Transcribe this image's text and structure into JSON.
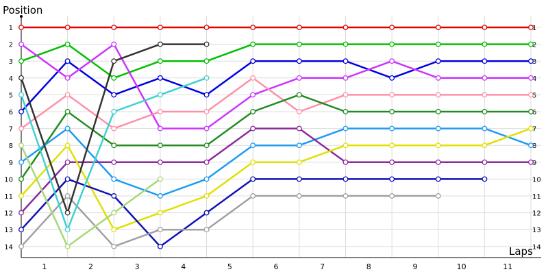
{
  "chart_data": {
    "type": "line",
    "title": "",
    "xlabel": "Laps",
    "ylabel": "Position",
    "x_tick_labels": [
      "1",
      "2",
      "3",
      "4",
      "5",
      "6",
      "7",
      "8",
      "9",
      "10",
      "11"
    ],
    "laps": [
      0,
      1,
      2,
      3,
      4,
      5,
      6,
      7,
      8,
      9,
      10,
      11
    ],
    "ylim": [
      1,
      14
    ],
    "y_inverted": true,
    "y_tick_labels": [
      "1",
      "2",
      "3",
      "4",
      "5",
      "6",
      "7",
      "8",
      "9",
      "10",
      "11",
      "12",
      "13",
      "14"
    ],
    "grid": true,
    "legend": "none",
    "series": [
      {
        "color": "#e00000",
        "positions": [
          1,
          1,
          1,
          1,
          1,
          1,
          1,
          1,
          1,
          1,
          1,
          1
        ]
      },
      {
        "color": "#00c000",
        "positions": [
          3,
          2,
          4,
          3,
          3,
          2,
          2,
          2,
          2,
          2,
          2,
          2
        ]
      },
      {
        "color": "#0000e0",
        "positions": [
          6,
          3,
          5,
          4,
          5,
          3,
          3,
          3,
          4,
          3,
          3,
          3
        ]
      },
      {
        "color": "#cc33ff",
        "positions": [
          2,
          4,
          2,
          7,
          7,
          5,
          4,
          4,
          3,
          4,
          4,
          4
        ]
      },
      {
        "color": "#ff8fa8",
        "positions": [
          7,
          5,
          7,
          6,
          6,
          4,
          6,
          5,
          5,
          5,
          5,
          5
        ]
      },
      {
        "color": "#228b22",
        "positions": [
          10,
          6,
          8,
          8,
          8,
          6,
          5,
          6,
          6,
          6,
          6,
          6
        ]
      },
      {
        "color": "#1e9bef",
        "positions": [
          9,
          7,
          10,
          11,
          10,
          8,
          8,
          7,
          7,
          7,
          7,
          8
        ]
      },
      {
        "color": "#8b2a9a",
        "positions": [
          12,
          9,
          9,
          9,
          9,
          7,
          7,
          9,
          9,
          9,
          9,
          9
        ]
      },
      {
        "color": "#e0e000",
        "positions": [
          11,
          8,
          13,
          12,
          11,
          9,
          9,
          8,
          8,
          8,
          8,
          7
        ]
      },
      {
        "color": "#1010b8",
        "positions": [
          13,
          10,
          11,
          14,
          12,
          10,
          10,
          10,
          10,
          10,
          10,
          null
        ]
      },
      {
        "color": "#a0a0a0",
        "positions": [
          14,
          11,
          14,
          13,
          13,
          11,
          11,
          11,
          11,
          11,
          null,
          null
        ]
      },
      {
        "color": "#333333",
        "positions": [
          4,
          12,
          3,
          2,
          2,
          null,
          null,
          null,
          null,
          null,
          null,
          null
        ]
      },
      {
        "color": "#40d0d0",
        "positions": [
          5,
          13,
          6,
          5,
          4,
          null,
          null,
          null,
          null,
          null,
          null,
          null
        ]
      },
      {
        "color": "#a8d878",
        "positions": [
          8,
          14,
          12,
          10,
          null,
          null,
          null,
          null,
          null,
          null,
          null,
          null
        ]
      }
    ]
  }
}
